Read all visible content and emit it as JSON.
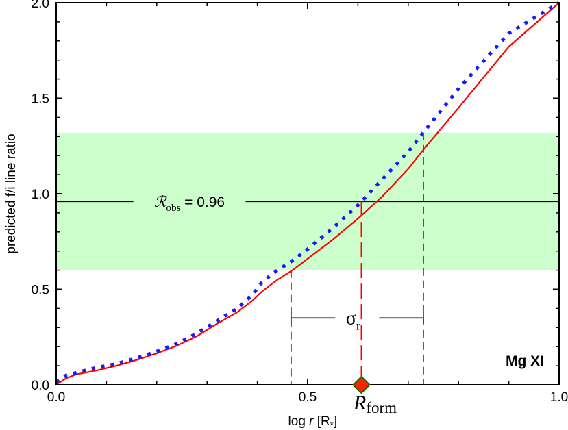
{
  "chart_data": {
    "type": "line",
    "xlabel_prefix": "log ",
    "xlabel_var": "r",
    "xlabel_unit": " [R",
    "xlabel_sub": "*",
    "xlabel_close": "]",
    "ylabel": "predicted f/i line ratio",
    "xlim": [
      0.0,
      1.0
    ],
    "ylim": [
      0.0,
      2.0
    ],
    "x_ticks": [
      0.0,
      0.5,
      1.0
    ],
    "x_tick_labels": [
      "0.0",
      "0.5",
      "1.0"
    ],
    "y_ticks": [
      0.0,
      0.5,
      1.0,
      1.5,
      2.0
    ],
    "y_tick_labels": [
      "0.0",
      "0.5",
      "1.0",
      "1.5",
      "2.0"
    ],
    "series": [
      {
        "style": "solid-red",
        "color": "#ff0000",
        "x": [
          0.0,
          0.02,
          0.04,
          0.08,
          0.12,
          0.16,
          0.2,
          0.24,
          0.28,
          0.32,
          0.36,
          0.39,
          0.41,
          0.44,
          0.47,
          0.5,
          0.55,
          0.6,
          0.65,
          0.7,
          0.73,
          0.8,
          0.9,
          1.0
        ],
        "y": [
          0.0,
          0.035,
          0.055,
          0.075,
          0.1,
          0.13,
          0.165,
          0.205,
          0.255,
          0.32,
          0.38,
          0.44,
          0.49,
          0.55,
          0.6,
          0.66,
          0.76,
          0.87,
          0.99,
          1.13,
          1.23,
          1.45,
          1.77,
          2.05
        ]
      },
      {
        "style": "dotted-blue",
        "color": "#1a1aff",
        "x": [
          0.0,
          0.02,
          0.05,
          0.08,
          0.12,
          0.16,
          0.2,
          0.24,
          0.28,
          0.32,
          0.36,
          0.39,
          0.41,
          0.44,
          0.47,
          0.5,
          0.55,
          0.6,
          0.65,
          0.7,
          0.73,
          0.8,
          0.9,
          1.0
        ],
        "y": [
          0.015,
          0.05,
          0.07,
          0.09,
          0.11,
          0.14,
          0.175,
          0.215,
          0.27,
          0.335,
          0.4,
          0.47,
          0.54,
          0.6,
          0.65,
          0.71,
          0.82,
          0.94,
          1.08,
          1.22,
          1.32,
          1.55,
          1.84,
          2.1
        ]
      }
    ],
    "shaded_band": {
      "y_min": 0.6,
      "y_max": 1.32,
      "color": "#ccffcc"
    },
    "observed": {
      "label_script": "ℛ",
      "label_sub": "obs",
      "label_value": " = 0.96",
      "value": 0.96
    },
    "r_form": {
      "x": 0.607,
      "label": "R",
      "label_sub": "form",
      "marker_fill": "#ff2200",
      "marker_edge": "#007700"
    },
    "sigma_bracket": {
      "x_low": 0.467,
      "x_high": 0.73,
      "y": 0.35,
      "label": "σ",
      "label_sub": "r"
    },
    "ion_label": "Mg XI"
  }
}
